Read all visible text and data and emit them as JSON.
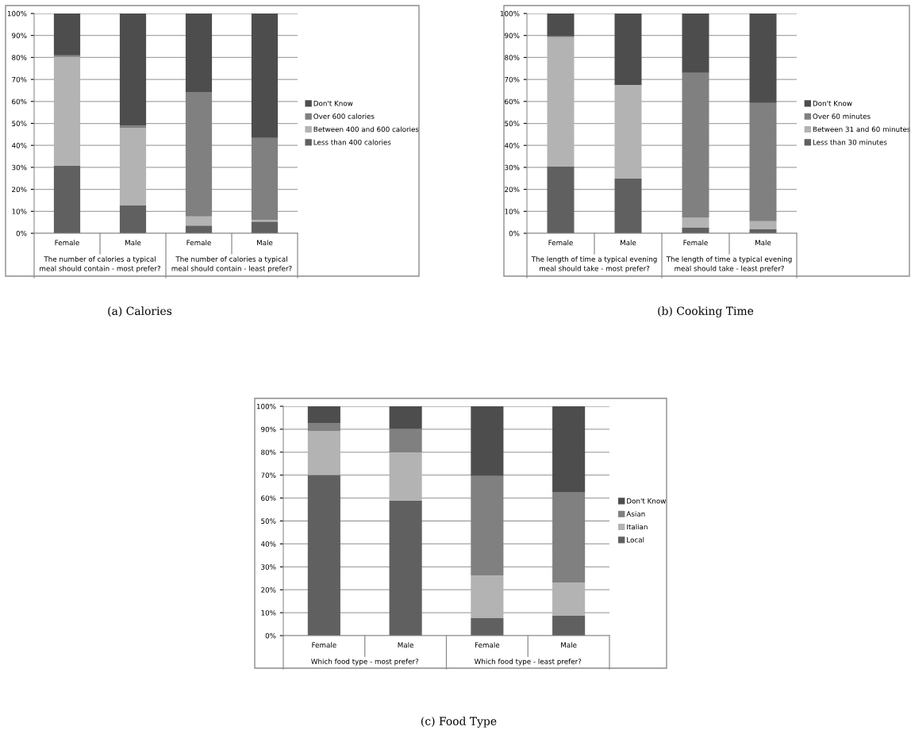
{
  "chart_data": [
    {
      "type": "bar",
      "stacked": true,
      "title": "(a) Calories",
      "categories": [
        "Female",
        "Male",
        "Female",
        "Male"
      ],
      "annotations": [
        "The number of calories a typical meal should contain - most prefer?",
        "The number of calories a typical meal should contain - least prefer?"
      ],
      "ylim": [
        0,
        100
      ],
      "yticks": [
        {
          "value": 0,
          "label": "0%"
        },
        {
          "value": 10,
          "label": "10%"
        },
        {
          "value": 20,
          "label": "20%"
        },
        {
          "value": 30,
          "label": "30%"
        },
        {
          "value": 40,
          "label": "40%"
        },
        {
          "value": 50,
          "label": "50%"
        },
        {
          "value": 60,
          "label": "60%"
        },
        {
          "value": 70,
          "label": "70%"
        },
        {
          "value": 80,
          "label": "80%"
        },
        {
          "value": 90,
          "label": "90%"
        },
        {
          "value": 100,
          "label": "100%"
        }
      ],
      "grid": "y",
      "legend": "right",
      "series": [
        {
          "name": "Less than 400 calories",
          "color": "#606060",
          "values": [
            30.7,
            12.8,
            3.5,
            5.3
          ]
        },
        {
          "name": "Between 400 and 600 calories",
          "color": "#b3b3b3",
          "values": [
            49.5,
            35.2,
            4.2,
            0.8
          ]
        },
        {
          "name": "Over 600 calories",
          "color": "#808080",
          "values": [
            0.8,
            1.0,
            56.6,
            37.3
          ]
        },
        {
          "name": "Don't Know",
          "color": "#4d4d4d",
          "values": [
            19.0,
            51.0,
            35.7,
            56.6
          ]
        }
      ]
    },
    {
      "type": "bar",
      "stacked": true,
      "title": "(b) Cooking Time",
      "categories": [
        "Female",
        "Male",
        "Female",
        "Male"
      ],
      "annotations": [
        "The length of time a typical evening meal should take - most prefer?",
        "The length of time a typical evening meal should take - least prefer?"
      ],
      "ylim": [
        0,
        100
      ],
      "yticks": [
        {
          "value": 0,
          "label": "0%"
        },
        {
          "value": 10,
          "label": "10%"
        },
        {
          "value": 20,
          "label": "20%"
        },
        {
          "value": 30,
          "label": "30%"
        },
        {
          "value": 40,
          "label": "40%"
        },
        {
          "value": 50,
          "label": "50%"
        },
        {
          "value": 60,
          "label": "60%"
        },
        {
          "value": 70,
          "label": "70%"
        },
        {
          "value": 80,
          "label": "80%"
        },
        {
          "value": 90,
          "label": "90%"
        },
        {
          "value": 100,
          "label": "100%"
        }
      ],
      "grid": "y",
      "legend": "right",
      "series": [
        {
          "name": "Less than 30 minutes",
          "color": "#606060",
          "values": [
            30.5,
            25.0,
            2.7,
            2.0
          ]
        },
        {
          "name": "Between 31 and 60 minutes",
          "color": "#b3b3b3",
          "values": [
            58.8,
            42.5,
            4.5,
            3.5
          ]
        },
        {
          "name": "Over 60 minutes",
          "color": "#808080",
          "values": [
            0.3,
            0.0,
            65.8,
            53.8
          ]
        },
        {
          "name": "Don't Know",
          "color": "#4d4d4d",
          "values": [
            10.4,
            32.5,
            27.0,
            40.7
          ]
        }
      ]
    },
    {
      "type": "bar",
      "stacked": true,
      "title": "(c) Food Type",
      "categories": [
        "Female",
        "Male",
        "Female",
        "Male"
      ],
      "annotations": [
        "Which food type - most prefer?",
        "Which food type - least prefer?"
      ],
      "ylim": [
        0,
        100
      ],
      "yticks": [
        {
          "value": 0,
          "label": "0%"
        },
        {
          "value": 10,
          "label": "10%"
        },
        {
          "value": 20,
          "label": "20%"
        },
        {
          "value": 30,
          "label": "30%"
        },
        {
          "value": 40,
          "label": "40%"
        },
        {
          "value": 50,
          "label": "50%"
        },
        {
          "value": 60,
          "label": "60%"
        },
        {
          "value": 70,
          "label": "70%"
        },
        {
          "value": 80,
          "label": "80%"
        },
        {
          "value": 90,
          "label": "90%"
        },
        {
          "value": 100,
          "label": "100%"
        }
      ],
      "grid": "y",
      "legend": "right",
      "series": [
        {
          "name": "Local",
          "color": "#606060",
          "values": [
            70.1,
            58.9,
            7.8,
            8.8
          ]
        },
        {
          "name": "Italian",
          "color": "#b3b3b3",
          "values": [
            19.2,
            21.0,
            18.5,
            14.4
          ]
        },
        {
          "name": "Asian",
          "color": "#808080",
          "values": [
            3.4,
            10.2,
            43.3,
            39.4
          ]
        },
        {
          "name": "Don't Know",
          "color": "#4d4d4d",
          "values": [
            7.3,
            9.9,
            30.4,
            37.4
          ]
        }
      ]
    }
  ]
}
